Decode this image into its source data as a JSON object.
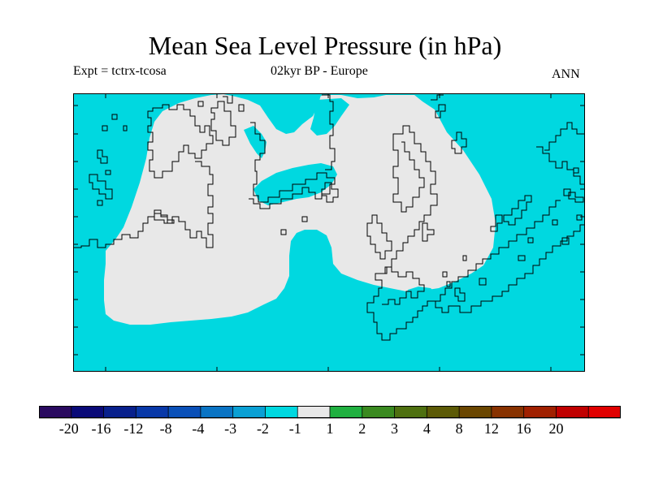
{
  "title": "Mean Sea Level Pressure (in hPa)",
  "subtitle_left": "Expt = tctrx-tcosa",
  "subtitle_center": "02kyr BP - Europe",
  "subtitle_right": "ANN",
  "colors": {
    "ocean": "#00d8e0",
    "land_fill": "#e8e8e8",
    "coastline": "#000000"
  },
  "colorbar": {
    "colors": [
      "#2a0a60",
      "#0a0a78",
      "#08208c",
      "#0838a8",
      "#0a50b8",
      "#0a74c4",
      "#0aa0d4",
      "#00d8e0",
      "#e8e8e8",
      "#20b040",
      "#3a8a20",
      "#4e7010",
      "#5c5a06",
      "#6a4600",
      "#883200",
      "#a02000",
      "#c00000",
      "#e00000"
    ],
    "labels": [
      "-20",
      "-16",
      "-12",
      "-8",
      "-4",
      "-3",
      "-2",
      "-1",
      "1",
      "2",
      "3",
      "4",
      "8",
      "12",
      "16",
      "20"
    ]
  }
}
